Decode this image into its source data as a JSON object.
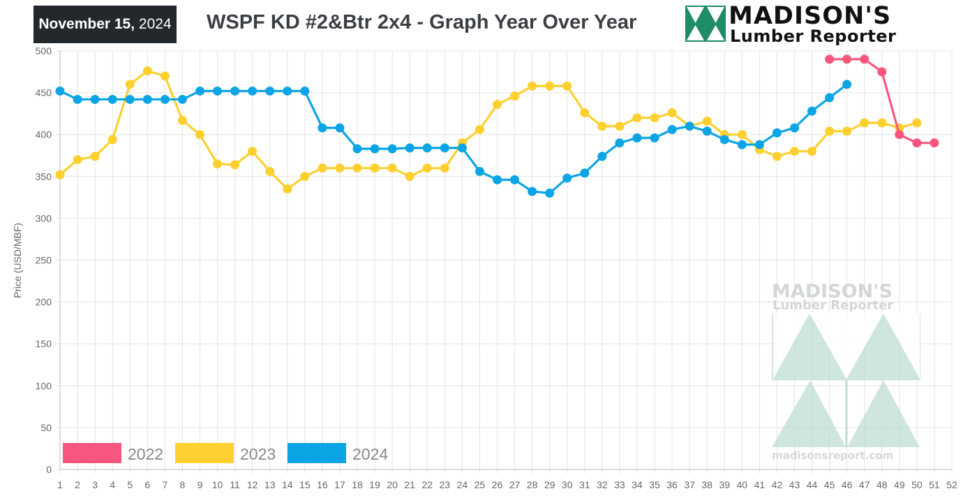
{
  "header": {
    "date_bold": "November 15,",
    "date_year": "2024",
    "title": "WSPF KD #2&Btr 2x4 - Graph Year Over Year",
    "logo_name": "MADISON'S",
    "logo_sub": "Lumber Reporter"
  },
  "watermark": {
    "name": "MADISON'S",
    "sub": "Lumber Reporter",
    "url": "madisonsreport.com"
  },
  "colors": {
    "2022": "#f7577f",
    "2023": "#fdd02f",
    "2024": "#0ba5e6",
    "brand_green": "#1e8c64",
    "grid": "#e4e4e4"
  },
  "chart_data": {
    "type": "line",
    "title": "WSPF KD #2&Btr 2x4 - Graph Year Over Year",
    "xlabel": "",
    "ylabel": "Price  (USD/MBF)",
    "xlim": [
      1,
      52
    ],
    "ylim": [
      0,
      500
    ],
    "y_ticks": [
      "0",
      "50",
      "100",
      "150",
      "200",
      "250",
      "300",
      "350",
      "400",
      "450",
      "500"
    ],
    "x_ticks": [
      "1",
      "2",
      "3",
      "4",
      "5",
      "6",
      "7",
      "8",
      "9",
      "10",
      "11",
      "12",
      "13",
      "14",
      "15",
      "16",
      "17",
      "18",
      "19",
      "20",
      "21",
      "22",
      "23",
      "24",
      "25",
      "26",
      "27",
      "28",
      "29",
      "30",
      "31",
      "32",
      "33",
      "34",
      "35",
      "36",
      "37",
      "38",
      "39",
      "40",
      "41",
      "42",
      "43",
      "44",
      "45",
      "46",
      "47",
      "48",
      "49",
      "50",
      "51",
      "52"
    ],
    "grid": true,
    "legend_position": "bottom-left",
    "series": [
      {
        "name": "2022",
        "x": [
          45,
          46,
          47,
          48,
          49,
          50,
          51
        ],
        "values": [
          490,
          490,
          490,
          475,
          400,
          390,
          390
        ]
      },
      {
        "name": "2023",
        "x": [
          1,
          2,
          3,
          4,
          5,
          6,
          7,
          8,
          9,
          10,
          11,
          12,
          13,
          14,
          15,
          16,
          17,
          18,
          19,
          20,
          21,
          22,
          23,
          24,
          25,
          26,
          27,
          28,
          29,
          30,
          31,
          32,
          33,
          34,
          35,
          36,
          37,
          38,
          39,
          40,
          41,
          42,
          43,
          44,
          45,
          46,
          47,
          48,
          49,
          50
        ],
        "values": [
          352,
          370,
          374,
          394,
          460,
          476,
          470,
          417,
          400,
          365,
          364,
          380,
          356,
          335,
          350,
          360,
          360,
          360,
          360,
          360,
          350,
          360,
          360,
          390,
          406,
          436,
          446,
          458,
          458,
          458,
          426,
          410,
          410,
          420,
          420,
          426,
          410,
          416,
          400,
          400,
          382,
          374,
          380,
          380,
          404,
          404,
          414,
          414,
          408,
          414
        ]
      },
      {
        "name": "2024",
        "x": [
          1,
          2,
          3,
          4,
          5,
          6,
          7,
          8,
          9,
          10,
          11,
          12,
          13,
          14,
          15,
          16,
          17,
          18,
          19,
          20,
          21,
          22,
          23,
          24,
          25,
          26,
          27,
          28,
          29,
          30,
          31,
          32,
          33,
          34,
          35,
          36,
          37,
          38,
          39,
          40,
          41,
          42,
          43,
          44,
          45,
          46
        ],
        "values": [
          452,
          442,
          442,
          442,
          442,
          442,
          442,
          442,
          452,
          452,
          452,
          452,
          452,
          452,
          452,
          408,
          408,
          383,
          383,
          383,
          384,
          384,
          384,
          384,
          356,
          346,
          346,
          332,
          330,
          348,
          354,
          374,
          390,
          396,
          396,
          406,
          410,
          404,
          394,
          388,
          388,
          402,
          408,
          428,
          444,
          460
        ]
      }
    ]
  }
}
